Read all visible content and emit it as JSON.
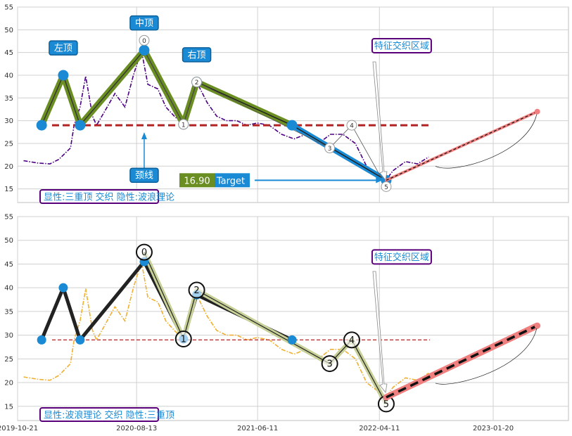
{
  "chart_data": [
    {
      "type": "line",
      "panel": "top",
      "ylim": [
        12,
        55
      ],
      "yticks": [
        15,
        20,
        25,
        30,
        35,
        40,
        45,
        50,
        55
      ],
      "grid": true,
      "series_color": "#4b0082",
      "series_style": "dash-dot",
      "price_series": [
        [
          "2019-11-05",
          21.2
        ],
        [
          "2019-12-10",
          20.7
        ],
        [
          "2020-01-10",
          20.5
        ],
        [
          "2020-02-01",
          21.5
        ],
        [
          "2020-03-01",
          24
        ],
        [
          "2020-03-10",
          29
        ],
        [
          "2020-03-25",
          33
        ],
        [
          "2020-04-08",
          39.8
        ],
        [
          "2020-04-25",
          31
        ],
        [
          "2020-05-05",
          29
        ],
        [
          "2020-05-25",
          32
        ],
        [
          "2020-06-20",
          36
        ],
        [
          "2020-07-15",
          33
        ],
        [
          "2020-08-05",
          40
        ],
        [
          "2020-08-25",
          45.5
        ],
        [
          "2020-09-10",
          38
        ],
        [
          "2020-10-05",
          37
        ],
        [
          "2020-10-25",
          33
        ],
        [
          "2020-11-15",
          31
        ],
        [
          "2020-12-08",
          29.2
        ],
        [
          "2020-12-20",
          33
        ],
        [
          "2021-01-10",
          38.5
        ],
        [
          "2021-02-05",
          34
        ],
        [
          "2021-03-01",
          31
        ],
        [
          "2021-03-25",
          30
        ],
        [
          "2021-04-20",
          30
        ],
        [
          "2021-05-15",
          29
        ],
        [
          "2021-06-10",
          29.5
        ],
        [
          "2021-07-10",
          29
        ],
        [
          "2021-08-10",
          27
        ],
        [
          "2021-09-10",
          26
        ],
        [
          "2021-10-10",
          27
        ],
        [
          "2021-11-10",
          25
        ],
        [
          "2021-12-10",
          27
        ],
        [
          "2022-01-10",
          27
        ],
        [
          "2022-02-10",
          25
        ],
        [
          "2022-03-10",
          20
        ],
        [
          "2022-04-10",
          18
        ],
        [
          "2022-04-28",
          17
        ],
        [
          "2022-05-15",
          19
        ],
        [
          "2022-06-15",
          21
        ],
        [
          "2022-07-15",
          20.5
        ],
        [
          "2022-08-12",
          22
        ]
      ],
      "pattern_points": [
        [
          "2019-12-20",
          29
        ],
        [
          "2020-02-12",
          40
        ],
        [
          "2020-03-25",
          29
        ],
        [
          "2020-09-01",
          45.5
        ],
        [
          "2020-12-08",
          29.2
        ],
        [
          "2021-01-10",
          38.5
        ],
        [
          "2021-09-05",
          29
        ],
        [
          "2022-04-28",
          16.9
        ]
      ],
      "neckline": {
        "value": 29,
        "start": "2020-01-15",
        "end": "2022-08-15"
      },
      "target_line": {
        "value": 16.9,
        "start": "2021-08-20",
        "end": "2022-04-18"
      },
      "projection": {
        "start": [
          "2022-04-28",
          16.9
        ],
        "end": [
          "2023-05-10",
          32
        ]
      },
      "wave_points": [
        {
          "label": "0",
          "x": "2020-09-01",
          "y": 45.5
        },
        {
          "label": "1",
          "x": "2020-12-08",
          "y": 29.2
        },
        {
          "label": "2",
          "x": "2021-01-10",
          "y": 38.5
        },
        {
          "label": "3",
          "x": "2021-12-08",
          "y": 24
        },
        {
          "label": "4",
          "x": "2022-02-01",
          "y": 29
        },
        {
          "label": "5",
          "x": "2022-04-28",
          "y": 15.5
        }
      ],
      "annotations": [
        {
          "text": "左顶",
          "x": "2020-02-12",
          "y": 46
        },
        {
          "text": "中顶",
          "x": "2020-09-01",
          "y": 51.5
        },
        {
          "text": "右顶",
          "x": "2021-01-10",
          "y": 44.5
        },
        {
          "text": "颈线",
          "x": "2020-09-01",
          "y": 18
        },
        {
          "text": "特征交织区域",
          "x": "2022-04-28",
          "y": 46.5
        }
      ],
      "target_value": "16.90",
      "target_label": "Target",
      "legend": "显性:三重顶 交织 隐性:波浪理论"
    },
    {
      "type": "line",
      "panel": "bottom",
      "ylim": [
        12,
        55
      ],
      "yticks": [
        15,
        20,
        25,
        30,
        35,
        40,
        45,
        50,
        55
      ],
      "grid": true,
      "series_color": "#f0b030",
      "series_style": "dash-dot",
      "xticks": [
        "2019-10-21",
        "2020-08-13",
        "2021-06-11",
        "2022-04-11",
        "2023-01-20"
      ],
      "pattern_points": [
        [
          "2019-12-20",
          29
        ],
        [
          "2020-02-12",
          40
        ],
        [
          "2020-03-25",
          29
        ],
        [
          "2020-09-01",
          45.5
        ],
        [
          "2020-12-08",
          29.2
        ],
        [
          "2021-01-10",
          38.5
        ],
        [
          "2021-09-05",
          29
        ]
      ],
      "neckline": {
        "value": 29,
        "start": "2020-01-15",
        "end": "2022-08-15"
      },
      "wave_points": [
        {
          "label": "0",
          "x": "2020-09-01",
          "y": 47.5
        },
        {
          "label": "1",
          "x": "2020-12-08",
          "y": 29.2
        },
        {
          "label": "2",
          "x": "2021-01-10",
          "y": 39.5
        },
        {
          "label": "3",
          "x": "2021-12-08",
          "y": 24
        },
        {
          "label": "4",
          "x": "2022-02-01",
          "y": 29
        },
        {
          "label": "5",
          "x": "2022-04-28",
          "y": 15.5
        }
      ],
      "projection": {
        "start": [
          "2022-04-28",
          16.9
        ],
        "end": [
          "2023-05-10",
          32
        ]
      },
      "annotations": [
        {
          "text": "特征交织区域",
          "x": "2022-04-28",
          "y": 46.5
        }
      ],
      "legend": "显性:波浪理论 交织 隐性:三重顶"
    }
  ],
  "colors": {
    "accent_blue": "#1a8ad4",
    "olive": "#6b8e23",
    "neckline_red": "#b22222",
    "legend_border": "#5a007a",
    "legend_text": "#1a8ad4",
    "projection": "#f08080",
    "target_box": "#6b8e23"
  }
}
